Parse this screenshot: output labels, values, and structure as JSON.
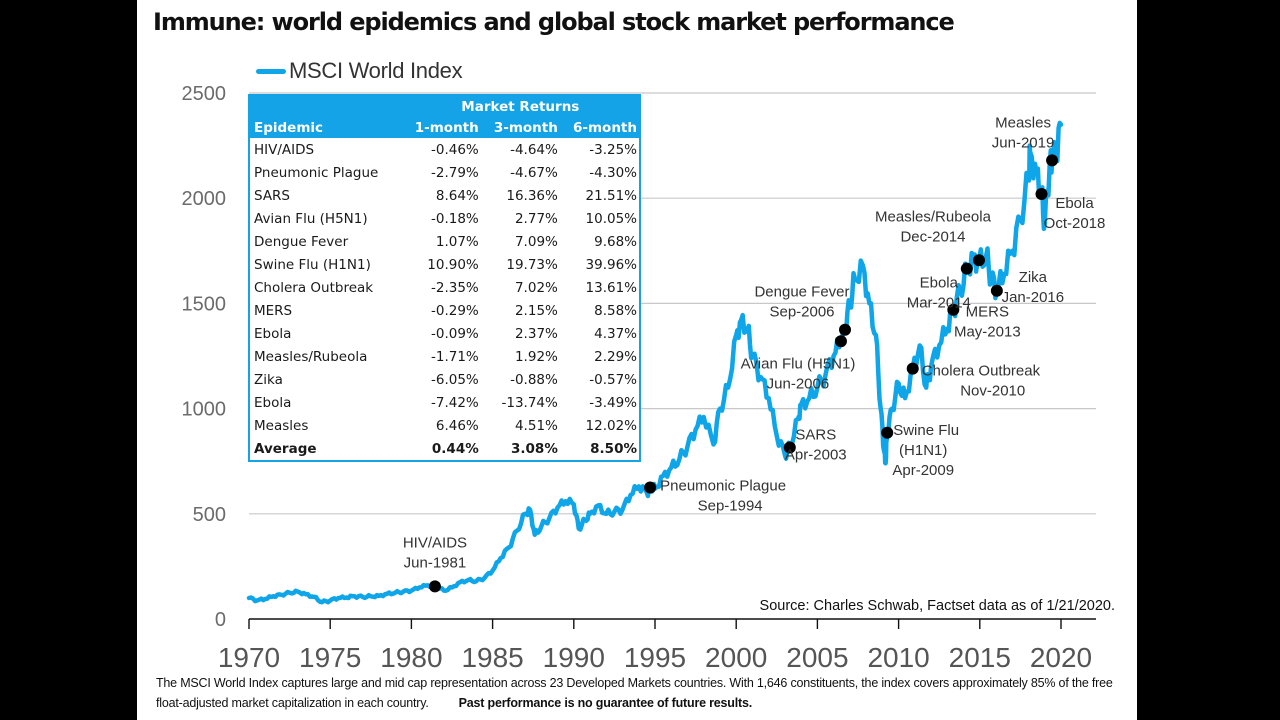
{
  "title": "Immune: world epidemics and global stock market performance",
  "legend": {
    "label": "MSCI World Index",
    "color": "#0EA5E9"
  },
  "source": "Source: Charles Schwab, Factset data as of 1/21/2020.",
  "footnote": {
    "text": "The MSCI World Index captures large and mid cap representation across 23 Developed Markets countries. With 1,646 constituents, the index covers approximately 85% of the free float-adjusted market capitalization in each country.",
    "bold": "Past performance is no guarantee of future results."
  },
  "table": {
    "group_header": "Market Returns",
    "headers": [
      "Epidemic",
      "1-month",
      "3-month",
      "6-month"
    ],
    "rows": [
      [
        "HIV/AIDS",
        "-0.46%",
        "-4.64%",
        "-3.25%"
      ],
      [
        "Pneumonic Plague",
        "-2.79%",
        "-4.67%",
        "-4.30%"
      ],
      [
        "SARS",
        "8.64%",
        "16.36%",
        "21.51%"
      ],
      [
        "Avian Flu (H5N1)",
        "-0.18%",
        "2.77%",
        "10.05%"
      ],
      [
        "Dengue Fever",
        "1.07%",
        "7.09%",
        "9.68%"
      ],
      [
        "Swine Flu (H1N1)",
        "10.90%",
        "19.73%",
        "39.96%"
      ],
      [
        "Cholera Outbreak",
        "-2.35%",
        "7.02%",
        "13.61%"
      ],
      [
        "MERS",
        "-0.29%",
        "2.15%",
        "8.58%"
      ],
      [
        "Ebola",
        "-0.09%",
        "2.37%",
        "4.37%"
      ],
      [
        "Measles/Rubeola",
        "-1.71%",
        "1.92%",
        "2.29%"
      ],
      [
        "Zika",
        "-6.05%",
        "-0.88%",
        "-0.57%"
      ],
      [
        "Ebola",
        "-7.42%",
        "-13.74%",
        "-3.49%"
      ],
      [
        "Measles",
        "6.46%",
        "4.51%",
        "12.02%"
      ]
    ],
    "average": [
      "Average",
      "0.44%",
      "3.08%",
      "8.50%"
    ],
    "header_color": "#13A3E6"
  },
  "chart_data": {
    "type": "line",
    "title": "Immune: world epidemics and global stock market performance",
    "xlabel": "",
    "ylabel": "",
    "xlim": [
      1970,
      2020.3
    ],
    "ylim": [
      0,
      2500
    ],
    "grid": true,
    "legend_position": "top-left",
    "x_ticks": [
      1970,
      1975,
      1980,
      1985,
      1990,
      1995,
      2000,
      2005,
      2010,
      2015,
      2020
    ],
    "y_ticks": [
      0,
      500,
      1000,
      1500,
      2000,
      2500
    ],
    "series": [
      {
        "name": "MSCI World Index",
        "color": "#0EA5E9",
        "points": [
          [
            1970.0,
            100
          ],
          [
            1970.5,
            88
          ],
          [
            1971.0,
            95
          ],
          [
            1971.5,
            108
          ],
          [
            1972.0,
            115
          ],
          [
            1972.5,
            125
          ],
          [
            1973.0,
            130
          ],
          [
            1973.5,
            118
          ],
          [
            1974.0,
            105
          ],
          [
            1974.5,
            80
          ],
          [
            1975.0,
            88
          ],
          [
            1975.5,
            100
          ],
          [
            1976.0,
            102
          ],
          [
            1976.5,
            108
          ],
          [
            1977.0,
            105
          ],
          [
            1977.5,
            108
          ],
          [
            1978.0,
            110
          ],
          [
            1978.5,
            120
          ],
          [
            1979.0,
            125
          ],
          [
            1979.5,
            130
          ],
          [
            1980.0,
            135
          ],
          [
            1980.5,
            150
          ],
          [
            1981.0,
            160
          ],
          [
            1981.5,
            155
          ],
          [
            1982.0,
            135
          ],
          [
            1982.5,
            150
          ],
          [
            1983.0,
            175
          ],
          [
            1983.5,
            185
          ],
          [
            1984.0,
            180
          ],
          [
            1984.5,
            195
          ],
          [
            1985.0,
            230
          ],
          [
            1985.5,
            290
          ],
          [
            1986.0,
            340
          ],
          [
            1986.5,
            420
          ],
          [
            1987.0,
            500
          ],
          [
            1987.3,
            520
          ],
          [
            1987.6,
            400
          ],
          [
            1988.0,
            440
          ],
          [
            1988.5,
            480
          ],
          [
            1989.0,
            530
          ],
          [
            1989.5,
            560
          ],
          [
            1990.0,
            545
          ],
          [
            1990.3,
            430
          ],
          [
            1990.7,
            470
          ],
          [
            1991.0,
            500
          ],
          [
            1991.5,
            540
          ],
          [
            1992.0,
            500
          ],
          [
            1992.5,
            510
          ],
          [
            1993.0,
            520
          ],
          [
            1993.5,
            590
          ],
          [
            1994.0,
            630
          ],
          [
            1994.5,
            600
          ],
          [
            1994.75,
            625
          ],
          [
            1995.0,
            620
          ],
          [
            1995.5,
            680
          ],
          [
            1996.0,
            720
          ],
          [
            1996.5,
            760
          ],
          [
            1997.0,
            820
          ],
          [
            1997.5,
            900
          ],
          [
            1998.0,
            960
          ],
          [
            1998.6,
            830
          ],
          [
            1999.0,
            1000
          ],
          [
            1999.5,
            1100
          ],
          [
            2000.0,
            1350
          ],
          [
            2000.3,
            1420
          ],
          [
            2000.7,
            1380
          ],
          [
            2001.0,
            1250
          ],
          [
            2001.5,
            1150
          ],
          [
            2002.0,
            1050
          ],
          [
            2002.5,
            870
          ],
          [
            2003.0,
            780
          ],
          [
            2003.3,
            820
          ],
          [
            2003.8,
            950
          ],
          [
            2004.0,
            1020
          ],
          [
            2004.5,
            1050
          ],
          [
            2005.0,
            1100
          ],
          [
            2005.5,
            1160
          ],
          [
            2006.0,
            1250
          ],
          [
            2006.45,
            1320
          ],
          [
            2006.7,
            1380
          ],
          [
            2007.0,
            1500
          ],
          [
            2007.3,
            1620
          ],
          [
            2007.8,
            1680
          ],
          [
            2008.2,
            1500
          ],
          [
            2008.6,
            1350
          ],
          [
            2008.9,
            1000
          ],
          [
            2009.1,
            800
          ],
          [
            2009.2,
            740
          ],
          [
            2009.29,
            885
          ],
          [
            2009.6,
            1000
          ],
          [
            2010.0,
            1120
          ],
          [
            2010.4,
            1050
          ],
          [
            2010.87,
            1190
          ],
          [
            2011.3,
            1300
          ],
          [
            2011.7,
            1100
          ],
          [
            2012.0,
            1200
          ],
          [
            2012.5,
            1300
          ],
          [
            2013.0,
            1380
          ],
          [
            2013.37,
            1470
          ],
          [
            2013.8,
            1560
          ],
          [
            2014.2,
            1660
          ],
          [
            2014.6,
            1720
          ],
          [
            2014.95,
            1700
          ],
          [
            2015.4,
            1730
          ],
          [
            2015.7,
            1620
          ],
          [
            2016.05,
            1560
          ],
          [
            2016.5,
            1640
          ],
          [
            2017.0,
            1750
          ],
          [
            2017.5,
            1900
          ],
          [
            2018.0,
            2100
          ],
          [
            2018.1,
            2220
          ],
          [
            2018.5,
            2120
          ],
          [
            2018.8,
            2020
          ],
          [
            2019.0,
            1880
          ],
          [
            2019.3,
            2150
          ],
          [
            2019.45,
            2180
          ],
          [
            2019.7,
            2200
          ],
          [
            2020.0,
            2350
          ]
        ]
      }
    ],
    "annotations": [
      {
        "label": "HIV/AIDS",
        "date": "Jun-1981",
        "x": 1981.45,
        "y": 155
      },
      {
        "label": "Pneumonic Plague",
        "date": "Sep-1994",
        "x": 1994.7,
        "y": 625
      },
      {
        "label": "SARS",
        "date": "Apr-2003",
        "x": 2003.3,
        "y": 815
      },
      {
        "label": "Avian Flu (H5N1)",
        "date": "Jun-2006",
        "x": 2006.45,
        "y": 1320
      },
      {
        "label": "Dengue Fever",
        "date": "Sep-2006",
        "x": 2006.7,
        "y": 1375
      },
      {
        "label": "Swine Flu (H1N1)",
        "date": "Apr-2009",
        "x": 2009.3,
        "y": 885
      },
      {
        "label": "Cholera Outbreak",
        "date": "Nov-2010",
        "x": 2010.87,
        "y": 1190
      },
      {
        "label": "MERS",
        "date": "May-2013",
        "x": 2013.37,
        "y": 1470
      },
      {
        "label": "Ebola",
        "date": "Mar-2014",
        "x": 2014.2,
        "y": 1665
      },
      {
        "label": "Measles/Rubeola",
        "date": "Dec-2014",
        "x": 2014.95,
        "y": 1705
      },
      {
        "label": "Zika",
        "date": "Jan-2016",
        "x": 2016.05,
        "y": 1560
      },
      {
        "label": "Ebola",
        "date": "Oct-2018",
        "x": 2018.8,
        "y": 2020
      },
      {
        "label": "Measles",
        "date": "Jun-2019",
        "x": 2019.45,
        "y": 2180
      }
    ]
  }
}
